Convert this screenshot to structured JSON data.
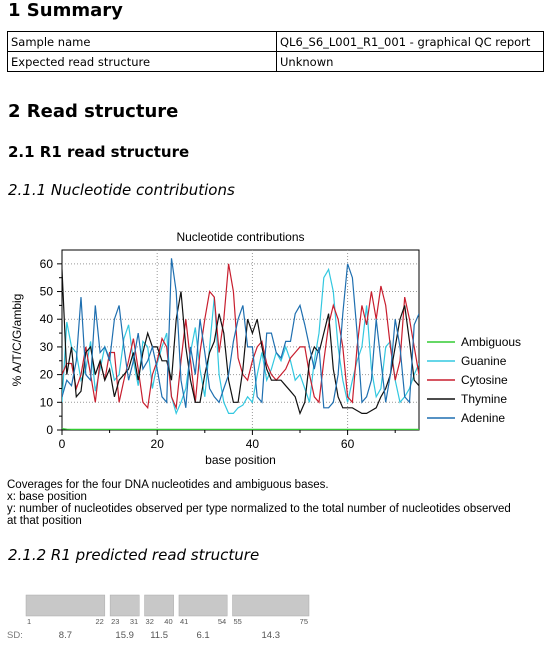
{
  "summary": {
    "heading": "1 Summary",
    "rows": [
      {
        "label": "Sample name",
        "value": "QL6_S6_L001_R1_001 - graphical QC report"
      },
      {
        "label": "Expected read structure",
        "value": "Unknown"
      }
    ]
  },
  "read_structure": {
    "heading": "2 Read structure",
    "r1_heading": "2.1 R1 read structure",
    "nuc_heading": "2.1.1 Nucleotide contributions",
    "caption": [
      "Coverages for the four DNA nucleotides and ambiguous bases.",
      "x: base position",
      "y: number of nucleotides observed per type normalized to the total number of nucleotides observed",
      "at that position"
    ],
    "predicted_heading": "2.1.2 R1 predicted read structure"
  },
  "chart_data": {
    "type": "line",
    "title": "Nucleotide contributions",
    "xlabel": "base position",
    "ylabel": "% A/T/C/G/ambig",
    "xlim": [
      0,
      75
    ],
    "ylim": [
      0,
      65
    ],
    "xticks": [
      0,
      20,
      40,
      60
    ],
    "yticks": [
      0,
      10,
      20,
      30,
      40,
      50,
      60
    ],
    "grid": "dotted",
    "legend_position": "right",
    "x": [
      0,
      1,
      2,
      3,
      4,
      5,
      6,
      7,
      8,
      9,
      10,
      11,
      12,
      13,
      14,
      15,
      16,
      17,
      18,
      19,
      20,
      21,
      22,
      23,
      24,
      25,
      26,
      27,
      28,
      29,
      30,
      31,
      32,
      33,
      34,
      35,
      36,
      37,
      38,
      39,
      40,
      41,
      42,
      43,
      44,
      45,
      46,
      47,
      48,
      49,
      50,
      51,
      52,
      53,
      54,
      55,
      56,
      57,
      58,
      59,
      60,
      61,
      62,
      63,
      64,
      65,
      66,
      67,
      68,
      69,
      70,
      71,
      72,
      73,
      74,
      75
    ],
    "series": [
      {
        "name": "Ambiguous",
        "color": "#33cc33",
        "values": [
          0.5,
          0.3,
          0.2,
          0.2,
          0.2,
          0.2,
          0.2,
          0.2,
          0.2,
          0.2,
          0.2,
          0.2,
          0.2,
          0.2,
          0.2,
          0.2,
          0.2,
          0.2,
          0.2,
          0.2,
          0.2,
          0.2,
          0.2,
          0.2,
          0.2,
          0.2,
          0.2,
          0.2,
          0.2,
          0.2,
          0.2,
          0.2,
          0.2,
          0.2,
          0.2,
          0.2,
          0.2,
          0.2,
          0.2,
          0.2,
          0.2,
          0.2,
          0.2,
          0.2,
          0.2,
          0.2,
          0.2,
          0.2,
          0.2,
          0.2,
          0.2,
          0.2,
          0.2,
          0.2,
          0.2,
          0.2,
          0.2,
          0.2,
          0.2,
          0.2,
          0.2,
          0.2,
          0.2,
          0.2,
          0.2,
          0.2,
          0.2,
          0.2,
          0.2,
          0.2,
          0.2,
          0.2,
          0.2,
          0.2,
          0.2,
          0.2
        ]
      },
      {
        "name": "Guanine",
        "color": "#33c8e0",
        "values": [
          10,
          39,
          30,
          28,
          18,
          22,
          32,
          14,
          22,
          30,
          26,
          18,
          20,
          33,
          38,
          25,
          16,
          32,
          30,
          15,
          24,
          30,
          35,
          12,
          6,
          10,
          15,
          28,
          37,
          22,
          12,
          30,
          48,
          20,
          10,
          6,
          6,
          8,
          9,
          12,
          10,
          20,
          28,
          18,
          22,
          28,
          25,
          30,
          25,
          18,
          20,
          15,
          10,
          25,
          35,
          55,
          58,
          50,
          30,
          18,
          10,
          18,
          25,
          30,
          45,
          22,
          12,
          15,
          30,
          32,
          18,
          10,
          12,
          15,
          20,
          24
        ]
      },
      {
        "name": "Cytosine",
        "color": "#c81e2e",
        "values": [
          20,
          24,
          24,
          15,
          20,
          30,
          20,
          10,
          25,
          18,
          28,
          28,
          10,
          18,
          25,
          33,
          22,
          10,
          8,
          20,
          25,
          33,
          30,
          12,
          8,
          25,
          40,
          25,
          10,
          28,
          40,
          50,
          48,
          28,
          40,
          60,
          50,
          26,
          20,
          18,
          25,
          30,
          32,
          24,
          20,
          18,
          20,
          22,
          26,
          28,
          30,
          30,
          20,
          12,
          10,
          25,
          38,
          45,
          40,
          30,
          12,
          10,
          30,
          45,
          38,
          50,
          40,
          52,
          45,
          30,
          18,
          25,
          48,
          40,
          30,
          20
        ]
      },
      {
        "name": "Thymine",
        "color": "#111111",
        "values": [
          58,
          20,
          30,
          12,
          14,
          28,
          30,
          20,
          25,
          18,
          22,
          12,
          18,
          20,
          22,
          28,
          18,
          28,
          35,
          30,
          30,
          25,
          25,
          18,
          40,
          50,
          30,
          18,
          10,
          10,
          20,
          28,
          32,
          42,
          35,
          18,
          10,
          10,
          22,
          40,
          35,
          40,
          30,
          22,
          18,
          18,
          18,
          16,
          14,
          12,
          6,
          10,
          25,
          30,
          28,
          35,
          42,
          22,
          12,
          8,
          8,
          8,
          7,
          6,
          6,
          7,
          8,
          12,
          15,
          20,
          30,
          40,
          45,
          32,
          18,
          16
        ]
      },
      {
        "name": "Adenine",
        "color": "#1f6fb0",
        "values": [
          12,
          18,
          16,
          25,
          48,
          20,
          18,
          45,
          28,
          30,
          25,
          40,
          45,
          30,
          18,
          25,
          35,
          22,
          25,
          30,
          22,
          12,
          10,
          62,
          50,
          18,
          8,
          30,
          20,
          40,
          28,
          15,
          12,
          10,
          15,
          20,
          32,
          40,
          45,
          30,
          30,
          12,
          10,
          35,
          35,
          28,
          26,
          32,
          32,
          42,
          45,
          38,
          30,
          22,
          30,
          8,
          8,
          10,
          20,
          42,
          60,
          55,
          35,
          10,
          12,
          18,
          40,
          25,
          10,
          20,
          40,
          30,
          12,
          10,
          38,
          42
        ]
      }
    ]
  },
  "predicted_structure": {
    "sd_label": "SD:",
    "segments": [
      {
        "start": "1",
        "end": "22",
        "sd": "8.7"
      },
      {
        "start": "23",
        "end": "31",
        "sd": "15.9"
      },
      {
        "start": "32",
        "end": "40",
        "sd": "11.5"
      },
      {
        "start": "41",
        "end": "54",
        "sd": "6.1"
      },
      {
        "start": "55",
        "end": "75",
        "sd": "14.3"
      }
    ]
  }
}
